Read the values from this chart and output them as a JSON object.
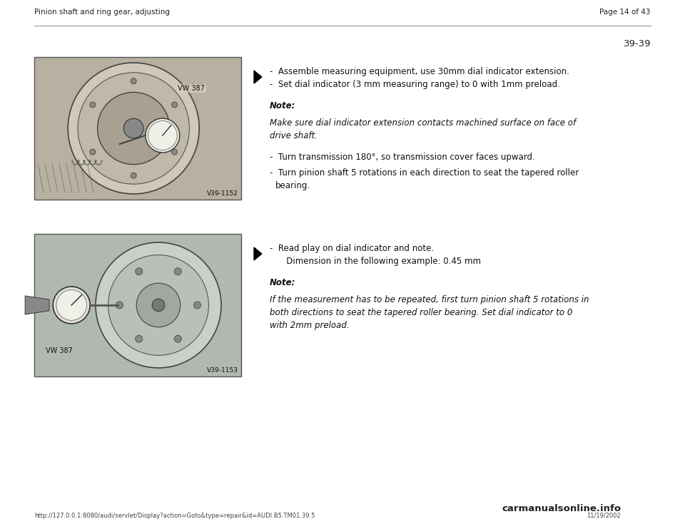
{
  "bg_color": "#ffffff",
  "page_width": 9.6,
  "page_height": 7.42,
  "header_left": "Pinion shaft and ring gear, adjusting",
  "header_right": "Page 14 of 43",
  "page_number": "39-39",
  "footer_left": "http://127.0.0.1:8080/audi/servlet/Display?action=Goto&type=repair&id=AUDI.B5.TM01.39.5",
  "footer_right_1": "carmanualsonline.info",
  "footer_right_2": "11/19/2002",
  "section1": {
    "bullet1": "-  Assemble measuring equipment, use 30mm dial indicator extension.",
    "bullet2": "-  Set dial indicator (3 mm measuring range) to 0 with 1mm preload.",
    "note_label": "Note:",
    "note_body1": "Make sure dial indicator extension contacts machined surface on face of",
    "note_body2": "drive shaft.",
    "bullet3": "-  Turn transmission 180°, so transmission cover faces upward.",
    "bullet4a": "-  Turn pinion shaft 5 rotations in each direction to seat the tapered roller",
    "bullet4b": "     bearing.",
    "img_label": "V39-1152",
    "vw_label": "VW 387"
  },
  "section2": {
    "bullet1": "-  Read play on dial indicator and note.",
    "bullet2": "   Dimension in the following example: 0.45 mm",
    "note_label": "Note:",
    "note_body1": "If the measurement has to be repeated, first turn pinion shaft 5 rotations in",
    "note_body2": "both directions to seat the tapered roller bearing. Set dial indicator to 0",
    "note_body3": "with 2mm preload.",
    "img_label": "V39-1153",
    "vw_label": "VW 387"
  },
  "font_header": 7.5,
  "font_body": 8.5,
  "font_note_label": 8.5,
  "font_note_body": 8.5,
  "font_pagenum": 9.5,
  "font_footer": 6.0,
  "font_brand": 9.5,
  "font_imglabel": 6.5,
  "font_vwlabel": 7.0
}
